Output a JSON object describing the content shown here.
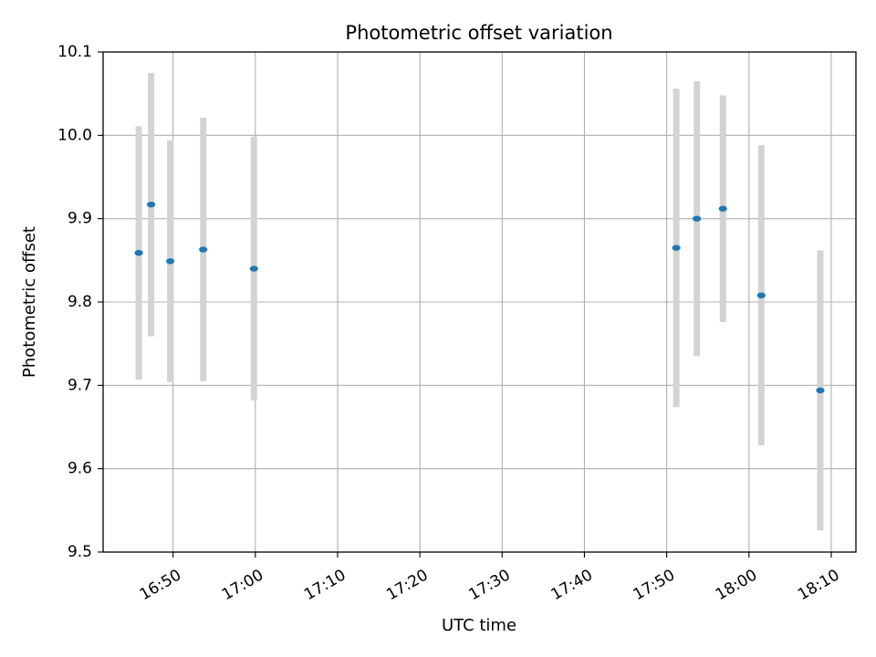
{
  "chart_data": {
    "type": "scatter",
    "title": "Photometric offset variation",
    "xlabel": "UTC time",
    "ylabel": "Photometric offset",
    "grid": true,
    "xlim": [
      "16:41:30",
      "18:13:00"
    ],
    "ylim": [
      9.5,
      10.1
    ],
    "x_ticks": [
      "16:50",
      "17:00",
      "17:10",
      "17:20",
      "17:30",
      "17:40",
      "17:50",
      "18:00",
      "18:10"
    ],
    "y_ticks": [
      "9.5",
      "9.6",
      "9.7",
      "9.8",
      "9.9",
      "10.0",
      "10.1"
    ],
    "series": [
      {
        "x": [
          "16:45:50",
          "16:47:20",
          "16:49:40",
          "16:53:40",
          "16:59:50",
          "17:51:10",
          "17:53:40",
          "17:56:50",
          "18:01:30",
          "18:08:40"
        ],
        "y": [
          9.859,
          9.917,
          9.849,
          9.863,
          9.84,
          9.865,
          9.9,
          9.912,
          9.808,
          9.694
        ],
        "yerr": [
          0.152,
          0.158,
          0.145,
          0.158,
          0.158,
          0.191,
          0.165,
          0.136,
          0.18,
          0.168
        ]
      }
    ],
    "colors": {
      "points": "#1f77b4",
      "error_bars": "#d3d3d3",
      "grid": "#b0b0b0"
    }
  }
}
